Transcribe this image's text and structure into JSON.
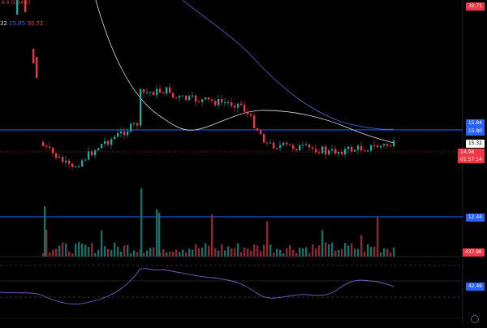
{
  "header": {
    "readout_top": "6.0 (1.24%)",
    "readout_prefix": "32",
    "readout_blue": "15.85",
    "readout_red": "30.71"
  },
  "price_axis": {
    "top_value": "30.71",
    "levels": [
      "15.84",
      "15.80",
      "15.32",
      "14.98",
      "12.44"
    ],
    "countdown": "01:57:14",
    "volume_label": "437.9K",
    "rsi_label": "42.46"
  },
  "colors": {
    "up": "#26a69a",
    "down": "#f23645",
    "hline": "#2962ff",
    "ma_white": "#e0e0e0",
    "ma_blue": "#2962ff",
    "rsi_line": "#7e57c2"
  },
  "icons": {
    "settings": "gear-icon"
  }
}
